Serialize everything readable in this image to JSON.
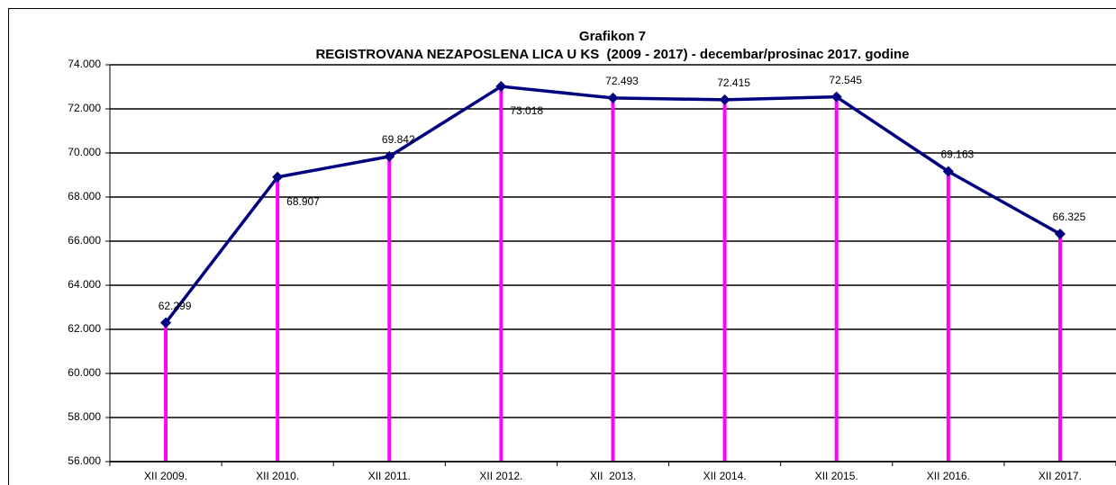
{
  "chart_data": {
    "type": "line",
    "title": "Grafikon 7",
    "subtitle": "REGISTROVANA NEZAPOSLENA LICA U KS  (2009 - 2017) - decembar/prosinac 2017. godine",
    "categories": [
      "XII 2009.",
      "XII 2010.",
      "XII 2011.",
      "XII 2012.",
      "XII  2013.",
      "XII 2014.",
      "XII 2015.",
      "XII 2016.",
      "XII 2017."
    ],
    "values": [
      62299,
      68907,
      69842,
      73018,
      72493,
      72415,
      72545,
      69163,
      66325
    ],
    "value_labels": [
      "62.299",
      "68.907",
      "69.842",
      "73.018",
      "72.493",
      "72.415",
      "72.545",
      "69.163",
      "66.325"
    ],
    "color": "#000080",
    "drop_line_color": "#ff00ff",
    "ylim": [
      56000,
      74000
    ],
    "yticks": [
      {
        "value": 56000,
        "label": "56.000"
      },
      {
        "value": 58000,
        "label": "58.000"
      },
      {
        "value": 60000,
        "label": "60.000"
      },
      {
        "value": 62000,
        "label": "62.000"
      },
      {
        "value": 64000,
        "label": "64.000"
      },
      {
        "value": 66000,
        "label": "66.000"
      },
      {
        "value": 68000,
        "label": "68.000"
      },
      {
        "value": 70000,
        "label": "70.000"
      },
      {
        "value": 72000,
        "label": "72.000"
      },
      {
        "value": 74000,
        "label": "74.000"
      }
    ],
    "grid": true
  }
}
